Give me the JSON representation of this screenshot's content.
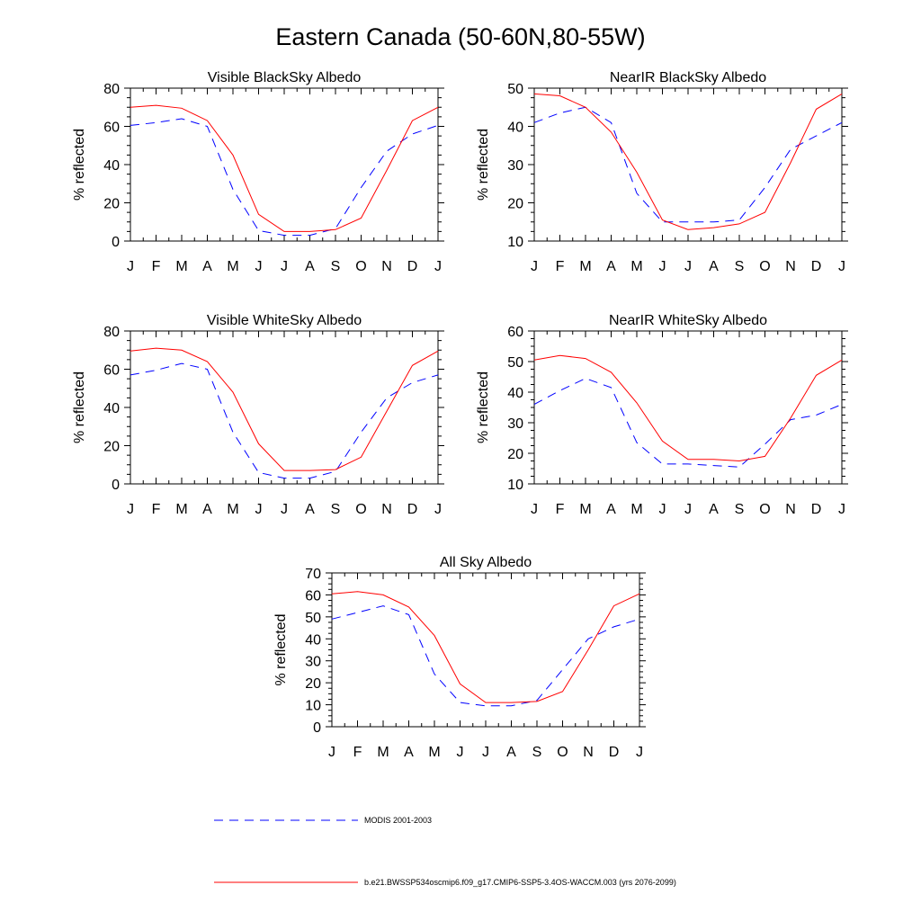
{
  "figure": {
    "title": "Eastern Canada (50-60N,80-55W)"
  },
  "legend": {
    "placement": "bottom-center",
    "entries": [
      {
        "label": "MODIS 2001-2003",
        "color": "#0000ff",
        "style": "dashed"
      },
      {
        "label": "b.e21.BWSSP534oscmip6.f09_g17.CMIP6-SSP5-3.4OS-WACCM.003 (yrs 2076-2099)",
        "color": "#ff0000",
        "style": "solid"
      }
    ]
  },
  "chart_data": [
    {
      "type": "line",
      "title": "Visible BlackSky Albedo",
      "xlabel": "",
      "ylabel": "% reflected",
      "categories": [
        "J",
        "F",
        "M",
        "A",
        "M",
        "J",
        "J",
        "A",
        "S",
        "O",
        "N",
        "D",
        "J"
      ],
      "ylim": [
        0,
        80
      ],
      "yticks": [
        0,
        20,
        40,
        60,
        80
      ],
      "series": [
        {
          "name": "MODIS 2001-2003",
          "values": [
            60.5,
            62,
            64,
            60,
            27,
            5.5,
            3,
            3,
            6.5,
            28,
            47,
            56,
            60.5
          ]
        },
        {
          "name": "b.e21.BWSSP534oscmip6.f09_g17.CMIP6-SSP5-3.4OS-WACCM.003 (yrs 2076-2099)",
          "values": [
            70,
            71,
            69.5,
            63,
            45,
            14,
            5,
            5,
            6,
            12,
            37,
            63,
            70
          ]
        }
      ]
    },
    {
      "type": "line",
      "title": "NearIR BlackSky Albedo",
      "xlabel": "",
      "ylabel": "% reflected",
      "categories": [
        "J",
        "F",
        "M",
        "A",
        "M",
        "J",
        "J",
        "A",
        "S",
        "O",
        "N",
        "D",
        "J"
      ],
      "ylim": [
        10,
        50
      ],
      "yticks": [
        10,
        20,
        30,
        40,
        50
      ],
      "series": [
        {
          "name": "MODIS 2001-2003",
          "values": [
            41,
            43.5,
            45,
            41,
            22.5,
            15,
            15,
            15,
            15.5,
            24,
            34,
            37.5,
            41
          ]
        },
        {
          "name": "b.e21.BWSSP534oscmip6.f09_g17.CMIP6-SSP5-3.4OS-WACCM.003 (yrs 2076-2099)",
          "values": [
            48.5,
            48,
            45,
            38.5,
            28,
            15.5,
            13,
            13.5,
            14.5,
            17.5,
            30.5,
            44.5,
            48.5
          ]
        }
      ]
    },
    {
      "type": "line",
      "title": "Visible WhiteSky Albedo",
      "xlabel": "",
      "ylabel": "% reflected",
      "categories": [
        "J",
        "F",
        "M",
        "A",
        "M",
        "J",
        "J",
        "A",
        "S",
        "O",
        "N",
        "D",
        "J"
      ],
      "ylim": [
        0,
        80
      ],
      "yticks": [
        0,
        20,
        40,
        60,
        80
      ],
      "series": [
        {
          "name": "MODIS 2001-2003",
          "values": [
            57,
            59.5,
            63,
            60,
            27,
            6,
            3,
            3,
            6.5,
            27,
            45,
            53,
            57
          ]
        },
        {
          "name": "b.e21.BWSSP534oscmip6.f09_g17.CMIP6-SSP5-3.4OS-WACCM.003 (yrs 2076-2099)",
          "values": [
            69.5,
            71,
            70,
            64,
            48,
            21,
            7,
            7,
            7.5,
            14,
            38,
            62,
            69.5
          ]
        }
      ]
    },
    {
      "type": "line",
      "title": "NearIR WhiteSky Albedo",
      "xlabel": "",
      "ylabel": "% reflected",
      "categories": [
        "J",
        "F",
        "M",
        "A",
        "M",
        "J",
        "J",
        "A",
        "S",
        "O",
        "N",
        "D",
        "J"
      ],
      "ylim": [
        10,
        60
      ],
      "yticks": [
        10,
        20,
        30,
        40,
        50,
        60
      ],
      "series": [
        {
          "name": "MODIS 2001-2003",
          "values": [
            36,
            40.5,
            44.5,
            41.5,
            23.5,
            16.5,
            16.5,
            16,
            15.5,
            23,
            31,
            32.5,
            36
          ]
        },
        {
          "name": "b.e21.BWSSP534oscmip6.f09_g17.CMIP6-SSP5-3.4OS-WACCM.003 (yrs 2076-2099)",
          "values": [
            50.5,
            52,
            51,
            46.5,
            36.5,
            24,
            18,
            18,
            17.5,
            19,
            31.5,
            45.5,
            50.5
          ]
        }
      ]
    },
    {
      "type": "line",
      "title": "All Sky Albedo",
      "xlabel": "",
      "ylabel": "% reflected",
      "categories": [
        "J",
        "F",
        "M",
        "A",
        "M",
        "J",
        "J",
        "A",
        "S",
        "O",
        "N",
        "D",
        "J"
      ],
      "ylim": [
        0,
        70
      ],
      "yticks": [
        0,
        10,
        20,
        30,
        40,
        50,
        60,
        70
      ],
      "series": [
        {
          "name": "MODIS 2001-2003",
          "values": [
            49,
            52,
            55,
            51,
            24,
            11,
            9.5,
            9.5,
            12,
            26,
            40,
            45.5,
            49
          ]
        },
        {
          "name": "b.e21.BWSSP534oscmip6.f09_g17.CMIP6-SSP5-3.4OS-WACCM.003 (yrs 2076-2099)",
          "values": [
            60.5,
            61.5,
            60,
            54.5,
            41.5,
            19.5,
            11,
            11,
            11.5,
            16,
            35,
            55,
            60.5
          ]
        }
      ]
    }
  ]
}
